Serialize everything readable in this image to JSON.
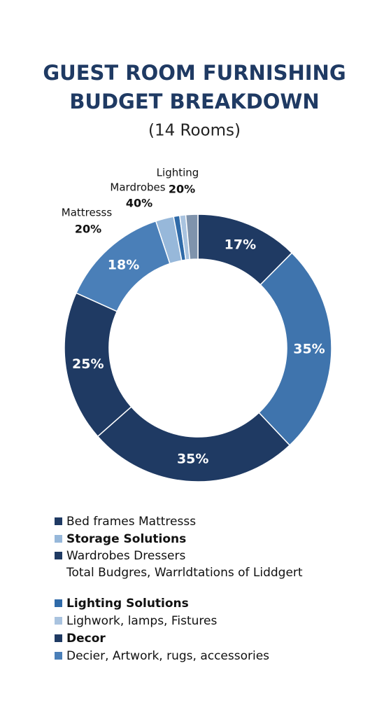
{
  "chart_data": {
    "type": "donut",
    "title": [
      "GUEST ROOM FURNISHING",
      "BUDGET BREAKDOWN"
    ],
    "subtitle": "(14 Rooms)",
    "values": [
      17,
      35,
      35,
      25,
      18,
      3,
      1,
      1,
      2
    ],
    "value_labels": [
      "17%",
      "35%",
      "35%",
      "25%",
      "18%",
      null,
      null,
      null,
      null
    ],
    "colors": [
      "#1f3a63",
      "#3f74ad",
      "#1f3a63",
      "#1f3a63",
      "#4a7fb8",
      "#97b8da",
      "#2f6aa8",
      "#a9c3df",
      "#7f93ac"
    ],
    "annotations": [
      {
        "text": "Lighting",
        "value": "20%"
      },
      {
        "text": "Mardrobes",
        "value": "40%"
      },
      {
        "text": "Mattresss",
        "value": "20%"
      }
    ],
    "legend": [
      {
        "text": "Bed frames Mattresss",
        "color": "#1f3a63",
        "bold": false
      },
      {
        "text": "Storage Solutions",
        "color": "#97b8da",
        "bold": true
      },
      {
        "text": "Wardrobes Dressers",
        "color": "#1f3a63",
        "bold": false
      },
      {
        "text": "Total Budgres, Warrldtations of Liddgert",
        "bold": false
      },
      {
        "text": "Lighting Solutions",
        "color": "#2f6aa8",
        "bold": true
      },
      {
        "text": "Lighwork, lamps, Fistures",
        "color": "#a9c3df",
        "bold": false
      },
      {
        "text": "Decor",
        "color": "#1f3a63",
        "bold": true
      },
      {
        "text": "Decier, Artwork, rugs, accessories",
        "color": "#4a7fb8",
        "bold": false
      }
    ]
  }
}
